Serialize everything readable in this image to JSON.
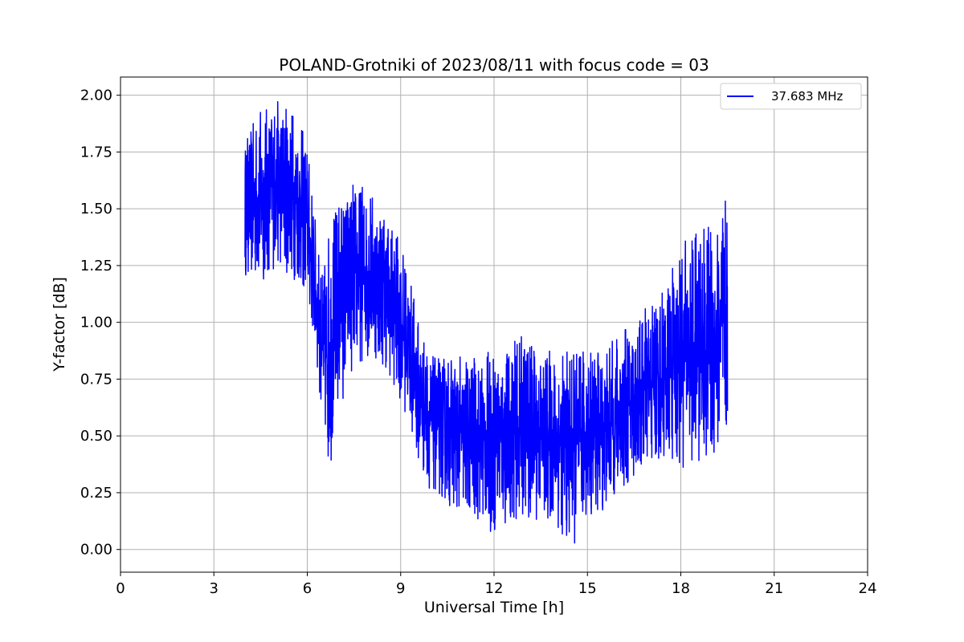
{
  "chart_data": {
    "type": "line",
    "title": "POLAND-Grotniki of 2023/08/11 with focus code = 03",
    "xlabel": "Universal Time [h]",
    "ylabel": "Y-factor [dB]",
    "xlim": [
      0,
      24
    ],
    "ylim": [
      -0.1,
      2.08
    ],
    "xticks": [
      0,
      3,
      6,
      9,
      12,
      15,
      18,
      21,
      24
    ],
    "xtick_labels": [
      "0",
      "3",
      "6",
      "9",
      "12",
      "15",
      "18",
      "21",
      "24"
    ],
    "yticks": [
      0.0,
      0.25,
      0.5,
      0.75,
      1.0,
      1.25,
      1.5,
      1.75,
      2.0
    ],
    "ytick_labels": [
      "0.00",
      "0.25",
      "0.50",
      "0.75",
      "1.00",
      "1.25",
      "1.50",
      "1.75",
      "2.00"
    ],
    "grid": true,
    "legend_position": "top-right",
    "series": [
      {
        "name": "37.683 MHz",
        "color": "#0000ff",
        "envelope_x": [
          4.0,
          4.5,
          5.0,
          5.5,
          6.0,
          6.3,
          6.5,
          6.7,
          7.0,
          7.5,
          8.0,
          8.5,
          9.0,
          9.3,
          9.6,
          10.0,
          10.5,
          11.0,
          11.5,
          12.0,
          12.5,
          13.0,
          13.5,
          14.0,
          14.5,
          15.0,
          15.5,
          16.0,
          16.5,
          17.0,
          17.5,
          18.0,
          18.5,
          19.0,
          19.5
        ],
        "envelope_low": [
          1.2,
          1.15,
          1.25,
          1.2,
          1.1,
          0.8,
          0.55,
          0.33,
          0.6,
          0.8,
          0.85,
          0.8,
          0.65,
          0.55,
          0.35,
          0.25,
          0.2,
          0.15,
          0.12,
          0.06,
          0.12,
          0.15,
          0.12,
          0.1,
          0.0,
          0.15,
          0.15,
          0.25,
          0.3,
          0.35,
          0.4,
          0.35,
          0.4,
          0.35,
          0.45
        ],
        "envelope_high": [
          1.8,
          1.95,
          1.98,
          1.97,
          1.8,
          1.4,
          1.2,
          1.45,
          1.55,
          1.63,
          1.6,
          1.5,
          1.35,
          1.2,
          1.0,
          0.85,
          0.85,
          0.85,
          0.85,
          0.88,
          0.9,
          0.95,
          0.88,
          0.88,
          0.87,
          0.9,
          0.88,
          0.95,
          1.0,
          1.1,
          1.15,
          1.35,
          1.4,
          1.45,
          1.55
        ]
      }
    ]
  }
}
